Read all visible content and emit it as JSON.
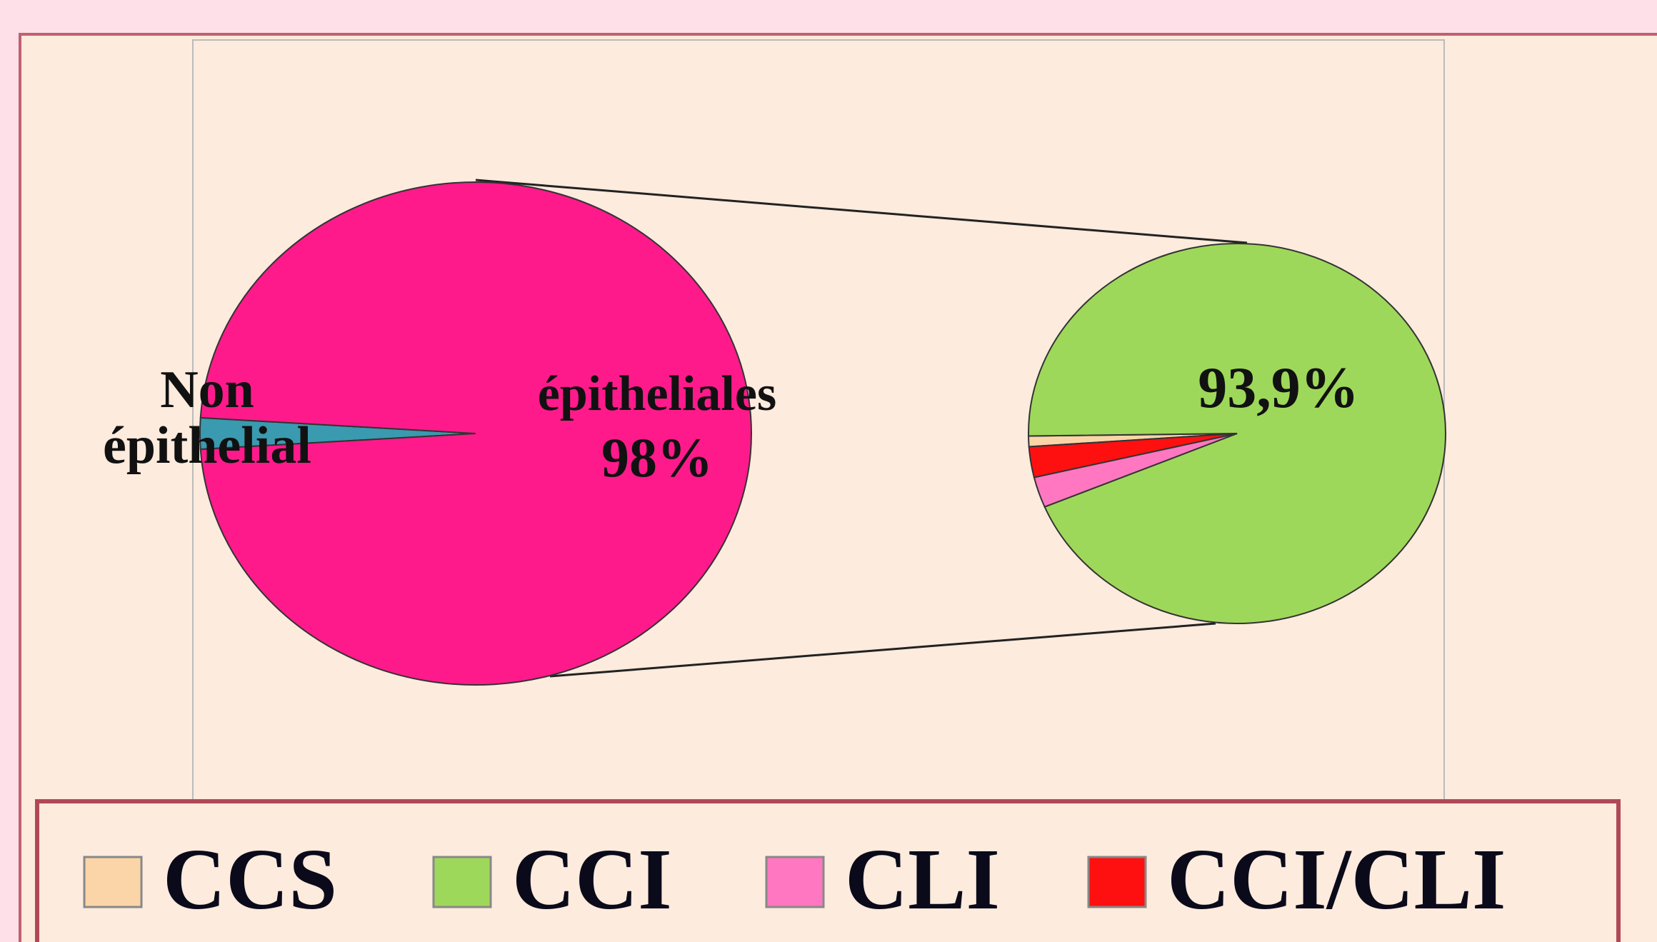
{
  "chart_data": [
    {
      "type": "pie",
      "categories": [
        "Non épithelial",
        "épitheliales"
      ],
      "values": [
        2,
        98
      ],
      "value_labels": [
        null,
        "98%"
      ],
      "colors": [
        "#3a9ab0",
        "#ff1a8c"
      ]
    },
    {
      "type": "pie",
      "categories": [
        "CCS",
        "CCI",
        "CLI",
        "CCI/CLI"
      ],
      "values": [
        0.9,
        93.9,
        2.6,
        2.6
      ],
      "value_labels": [
        null,
        "93,9%",
        null,
        null
      ],
      "colors": [
        "#fbd5a8",
        "#9ed85a",
        "#ff77c0",
        "#ff1010"
      ],
      "legend": "bottom"
    }
  ]
}
